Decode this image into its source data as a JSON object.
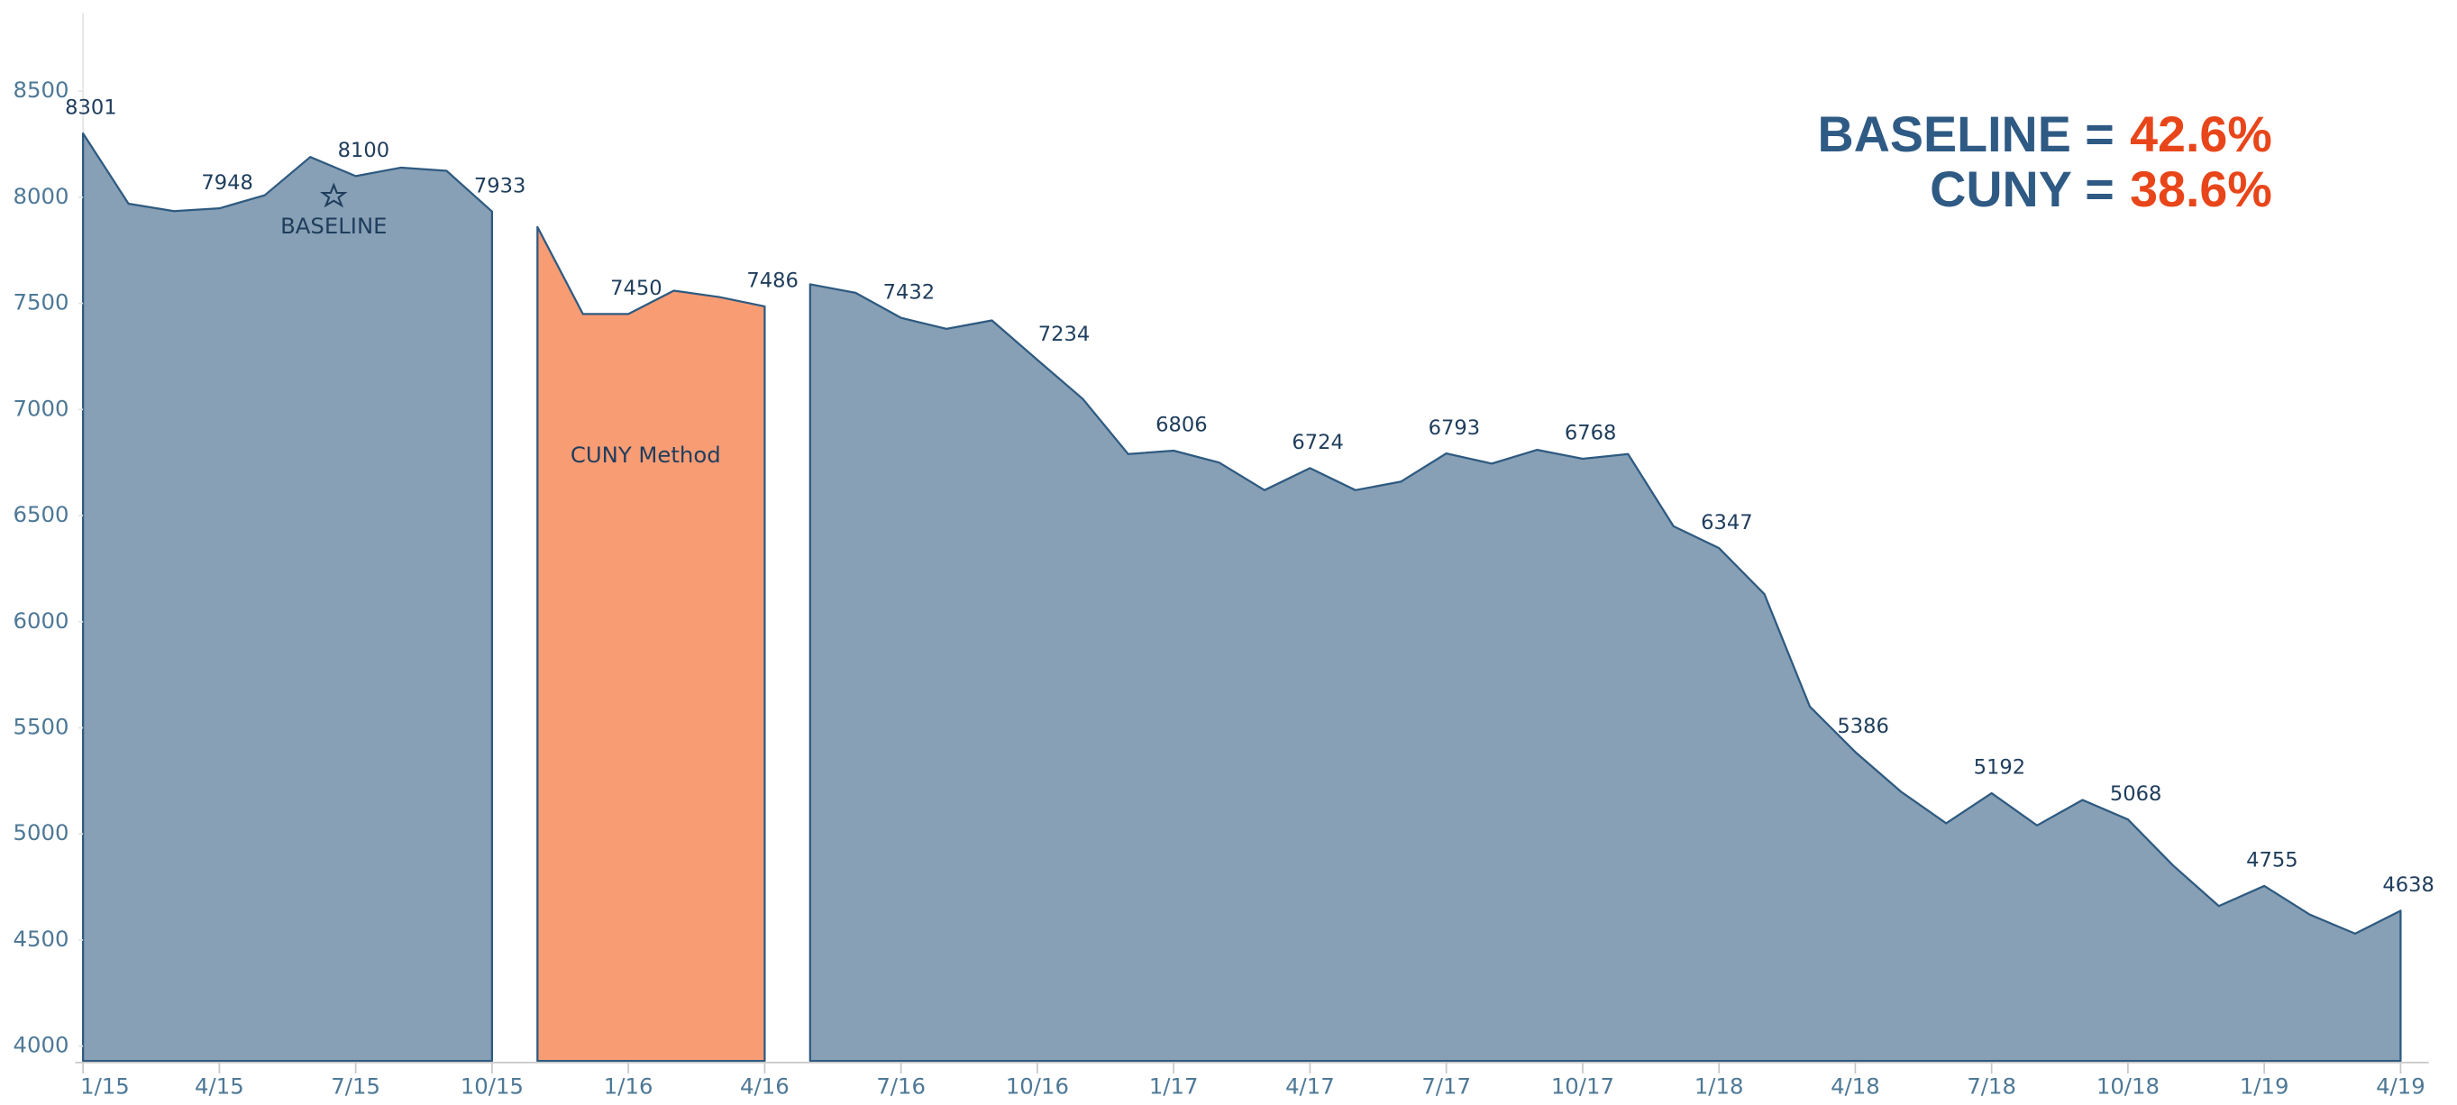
{
  "chart_data": {
    "type": "area",
    "categories": [
      "1/15",
      null,
      null,
      "4/15",
      null,
      null,
      "7/15",
      null,
      null,
      "10/15",
      null,
      null,
      "1/16",
      null,
      null,
      "4/16",
      null,
      null,
      "7/16",
      null,
      null,
      "10/16",
      null,
      null,
      "1/17",
      null,
      null,
      "4/17",
      null,
      null,
      "7/17",
      null,
      null,
      "10/17",
      null,
      null,
      "1/18",
      null,
      null,
      "4/18",
      null,
      null,
      "7/18",
      null,
      null,
      "10/18",
      null,
      null,
      "1/19",
      null,
      null,
      "4/19"
    ],
    "series": [
      {
        "name": "BASELINE",
        "color": "#87a0b6",
        "line_color": "#2e5a80",
        "values": [
          8301,
          7970,
          7935,
          7948,
          8010,
          8190,
          8100,
          8140,
          8125,
          7933,
          null,
          null,
          null,
          null,
          null,
          null,
          7590,
          7550,
          7432,
          7380,
          7420,
          7234,
          7050,
          6790,
          6806,
          6750,
          6620,
          6724,
          6620,
          6660,
          6793,
          6745,
          6810,
          6768,
          6790,
          6450,
          6347,
          6130,
          5600,
          5386,
          5200,
          5050,
          5192,
          5040,
          5160,
          5068,
          4850,
          4660,
          4755,
          4620,
          4530,
          4638
        ],
        "value_labels": [
          "8301",
          null,
          null,
          "7948",
          null,
          null,
          "8100",
          null,
          null,
          "7933",
          null,
          null,
          null,
          null,
          null,
          null,
          null,
          null,
          "7432",
          null,
          null,
          "7234",
          null,
          null,
          "6806",
          null,
          null,
          "6724",
          null,
          null,
          "6793",
          null,
          null,
          "6768",
          null,
          null,
          "6347",
          null,
          null,
          "5386",
          null,
          null,
          "5192",
          null,
          null,
          "5068",
          null,
          null,
          "4755",
          null,
          null,
          "4638"
        ]
      },
      {
        "name": "CUNY Method",
        "color": "#f89c74",
        "line_color": "#2e5a80",
        "values": [
          null,
          null,
          null,
          null,
          null,
          null,
          null,
          null,
          null,
          null,
          7860,
          7450,
          7450,
          7560,
          7530,
          7486,
          null,
          null,
          null,
          null,
          null,
          null,
          null,
          null,
          null,
          null,
          null,
          null,
          null,
          null,
          null,
          null,
          null,
          null,
          null,
          null,
          null,
          null,
          null,
          null,
          null,
          null,
          null,
          null,
          null,
          null,
          null,
          null,
          null,
          null,
          null,
          null
        ],
        "value_labels": [
          null,
          null,
          null,
          null,
          null,
          null,
          null,
          null,
          null,
          null,
          null,
          null,
          "7450",
          null,
          null,
          "7486",
          null,
          null,
          null,
          null,
          null,
          null,
          null,
          null,
          null,
          null,
          null,
          null,
          null,
          null,
          null,
          null,
          null,
          null,
          null,
          null,
          null,
          null,
          null,
          null,
          null,
          null,
          null,
          null,
          null,
          null,
          null,
          null,
          null,
          null,
          null,
          null
        ]
      }
    ],
    "ylim": [
      3930,
      8870
    ],
    "yticks": [
      4000,
      4500,
      5000,
      5500,
      6000,
      6500,
      7000,
      7500,
      8000,
      8500
    ],
    "annotations": [
      {
        "text": "BASELINE =",
        "value": "42.6%"
      },
      {
        "text": "CUNY =",
        "value": "38.6%"
      }
    ]
  }
}
